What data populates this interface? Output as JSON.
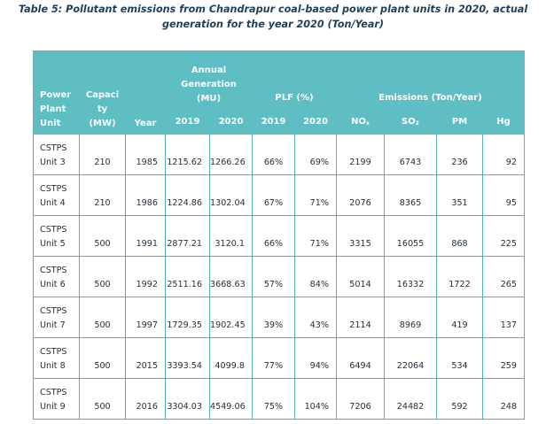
{
  "title": {
    "line1": "Table 5: Pollutant emissions from Chandrapur coal-based power plant units in 2020, actual",
    "line2": "generation for the year 2020 (Ton/Year)"
  },
  "headers": {
    "power_plant_unit": [
      "Power",
      "Plant",
      "Unit"
    ],
    "capacity": [
      "Capaci",
      "ty",
      "(MW)"
    ],
    "year": "Year",
    "annual_generation": [
      "Annual",
      "Generation",
      "(MU)"
    ],
    "plf": "PLF (%)",
    "emissions": "Emissions (Ton/Year)",
    "gen_2019": "2019",
    "gen_2020": "2020",
    "plf_2019": "2019",
    "plf_2020": "2020",
    "nox": "NO",
    "nox_sub": "x",
    "so2": "SO",
    "so2_sub": "2",
    "pm": "PM",
    "hg": "Hg"
  },
  "rows": [
    {
      "plant": "CSTPS",
      "unit": "Unit 3",
      "capacity": "210",
      "year": "1985",
      "gen2019": "1215.62",
      "gen2020": "1266.26",
      "plf2019": "66%",
      "plf2020": "69%",
      "nox": "2199",
      "so2": "6743",
      "pm": "236",
      "hg": "92"
    },
    {
      "plant": "CSTPS",
      "unit": "Unit 4",
      "capacity": "210",
      "year": "1986",
      "gen2019": "1224.86",
      "gen2020": "1302.04",
      "plf2019": "67%",
      "plf2020": "71%",
      "nox": "2076",
      "so2": "8365",
      "pm": "351",
      "hg": "95"
    },
    {
      "plant": "CSTPS",
      "unit": "Unit 5",
      "capacity": "500",
      "year": "1991",
      "gen2019": "2877.21",
      "gen2020": "3120.1",
      "plf2019": "66%",
      "plf2020": "71%",
      "nox": "3315",
      "so2": "16055",
      "pm": "868",
      "hg": "225"
    },
    {
      "plant": "CSTPS",
      "unit": "Unit 6",
      "capacity": "500",
      "year": "1992",
      "gen2019": "2511.16",
      "gen2020": "3668.63",
      "plf2019": "57%",
      "plf2020": "84%",
      "nox": "5014",
      "so2": "16332",
      "pm": "1722",
      "hg": "265"
    },
    {
      "plant": "CSTPS",
      "unit": "Unit 7",
      "capacity": "500",
      "year": "1997",
      "gen2019": "1729.35",
      "gen2020": "1902.45",
      "plf2019": "39%",
      "plf2020": "43%",
      "nox": "2114",
      "so2": "8969",
      "pm": "419",
      "hg": "137"
    },
    {
      "plant": "CSTPS",
      "unit": "Unit 8",
      "capacity": "500",
      "year": "2015",
      "gen2019": "3393.54",
      "gen2020": "4099.8",
      "plf2019": "77%",
      "plf2020": "94%",
      "nox": "6494",
      "so2": "22064",
      "pm": "534",
      "hg": "259"
    },
    {
      "plant": "CSTPS",
      "unit": "Unit 9",
      "capacity": "500",
      "year": "2016",
      "gen2019": "3304.03",
      "gen2020": "4549.06",
      "plf2019": "75%",
      "plf2020": "104%",
      "nox": "7206",
      "so2": "24482",
      "pm": "592",
      "hg": "248"
    }
  ],
  "colors": {
    "header_bg": "#5fbdc4",
    "border": "#4fb3ba",
    "title_text": "#1f3f5a"
  }
}
